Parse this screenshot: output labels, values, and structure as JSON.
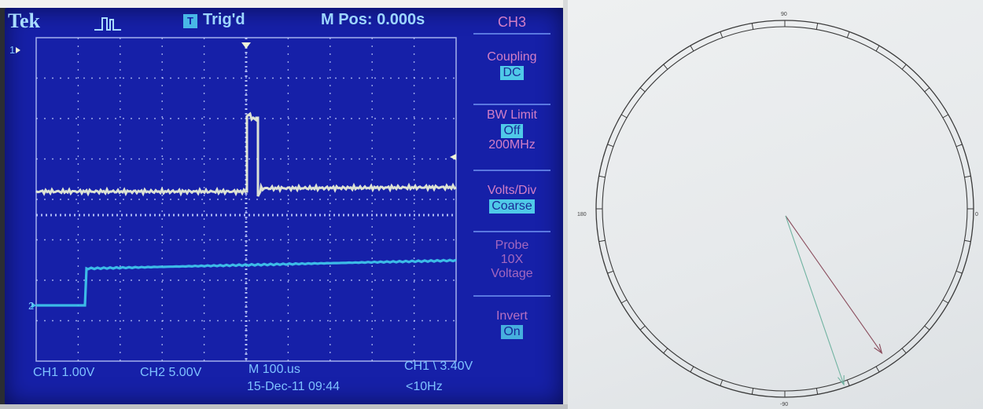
{
  "scope": {
    "brand": "Tek",
    "trigger_status": "Trig'd",
    "trigger_badge": "T",
    "m_pos": "M Pos: 0.000s",
    "menu_title": "CH3",
    "menu": [
      {
        "label": "Coupling",
        "value": "DC",
        "sub": ""
      },
      {
        "label": "BW Limit",
        "value": "Off",
        "sub": "200MHz"
      },
      {
        "label": "Volts/Div",
        "value": "Coarse",
        "sub": ""
      },
      {
        "label": "Probe",
        "value": "",
        "sub": "10X",
        "sub2": "Voltage"
      },
      {
        "label": "Invert",
        "value": "On",
        "sub": ""
      }
    ],
    "ch1_marker": "1",
    "ch2_marker": "2",
    "ch1_scale": "CH1 1.00V",
    "ch2_scale": "CH2 5.00V",
    "time_scale": "M 100.us",
    "trigger_level": "CH1 \\ 3.40V",
    "datetime": "15-Dec-11 09:44",
    "frequency": "<10Hz",
    "colors": {
      "screen": "#1620a8",
      "grid": "#c8d4ff",
      "ch1_trace": "#eef3d8",
      "ch2_trace": "#3ec4ea",
      "menu_text": "#d27fc6"
    }
  },
  "polar": {
    "labels": {
      "top": "90",
      "left": "180",
      "right": "0",
      "bottom": "-90"
    },
    "vectors": [
      {
        "name": "vector-red",
        "color": "#8a4c5c",
        "angle_deg": -55,
        "magnitude": 0.92
      },
      {
        "name": "vector-teal",
        "color": "#6fb2a0",
        "angle_deg": -71,
        "magnitude": 0.98
      }
    ]
  }
}
